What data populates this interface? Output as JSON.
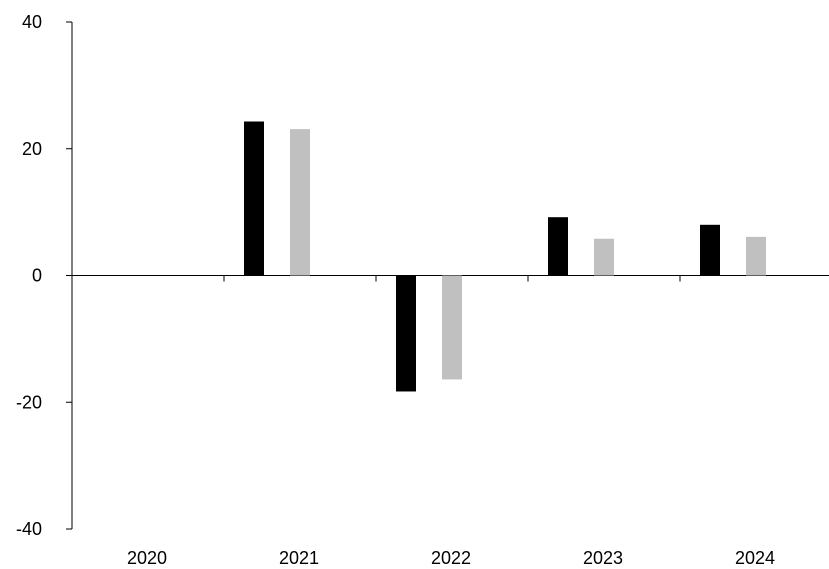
{
  "chart_data": {
    "type": "bar",
    "title": "",
    "xlabel": "",
    "ylabel": "",
    "categories": [
      "2020",
      "2021",
      "2022",
      "2023",
      "2024"
    ],
    "series": [
      {
        "color": "#000000",
        "values": [
          0,
          24.3,
          -18.3,
          9.2,
          8.0
        ]
      },
      {
        "color": "#c0c0c0",
        "values": [
          0,
          23.1,
          -16.4,
          5.8,
          6.1
        ]
      }
    ],
    "ylim": [
      -40,
      40
    ],
    "yticks": [
      -40,
      -20,
      0,
      20,
      40
    ],
    "grid": false,
    "legend": "none"
  }
}
